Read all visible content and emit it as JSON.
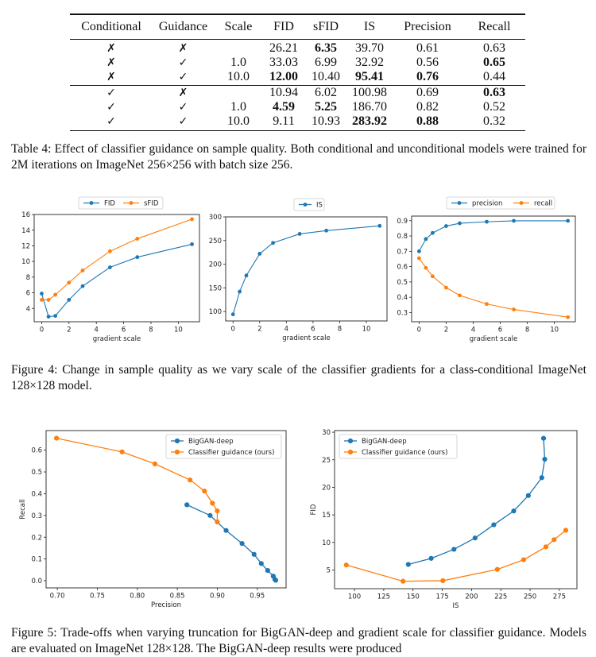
{
  "table": {
    "headers": [
      "Conditional",
      "Guidance",
      "Scale",
      "FID",
      "sFID",
      "IS",
      "Precision",
      "Recall"
    ],
    "rows": [
      {
        "cells": [
          "✗",
          "✗",
          "",
          "26.21",
          "6.35",
          "39.70",
          "0.61",
          "0.63"
        ],
        "bold": [
          false,
          false,
          false,
          false,
          true,
          false,
          false,
          false
        ]
      },
      {
        "cells": [
          "✗",
          "✓",
          "1.0",
          "33.03",
          "6.99",
          "32.92",
          "0.56",
          "0.65"
        ],
        "bold": [
          false,
          false,
          false,
          false,
          false,
          false,
          false,
          true
        ]
      },
      {
        "cells": [
          "✗",
          "✓",
          "10.0",
          "12.00",
          "10.40",
          "95.41",
          "0.76",
          "0.44"
        ],
        "bold": [
          false,
          false,
          false,
          true,
          false,
          true,
          true,
          false
        ]
      },
      {
        "cells": [
          "✓",
          "✗",
          "",
          "10.94",
          "6.02",
          "100.98",
          "0.69",
          "0.63"
        ],
        "bold": [
          false,
          false,
          false,
          false,
          false,
          false,
          false,
          true
        ]
      },
      {
        "cells": [
          "✓",
          "✓",
          "1.0",
          "4.59",
          "5.25",
          "186.70",
          "0.82",
          "0.52"
        ],
        "bold": [
          false,
          false,
          false,
          true,
          true,
          false,
          false,
          false
        ]
      },
      {
        "cells": [
          "✓",
          "✓",
          "10.0",
          "9.11",
          "10.93",
          "283.92",
          "0.88",
          "0.32"
        ],
        "bold": [
          false,
          false,
          false,
          false,
          false,
          true,
          true,
          false
        ]
      }
    ]
  },
  "captions": {
    "table4": "Table 4: Effect of classifier guidance on sample quality. Both conditional and unconditional models were trained for 2M iterations on ImageNet 256×256 with batch size 256.",
    "figure4": "Figure 4: Change in sample quality as we vary scale of the classifier gradients for a class-conditional ImageNet 128×128 model.",
    "figure5": "Figure 5:  Trade-offs when varying truncation for BigGAN-deep and gradient scale for classifier guidance. Models are evaluated on ImageNet 128×128. The BigGAN-deep results were produced"
  },
  "colors": {
    "blue": "#1f77b4",
    "orange": "#ff7f0e"
  },
  "chart_data": [
    {
      "type": "line",
      "id": "fig4-fid",
      "title": "",
      "xlabel": "gradient scale",
      "ylabel": "",
      "xlim": [
        -0.55,
        11.55
      ],
      "ylim": [
        2.3,
        16
      ],
      "xticks": [
        0,
        2,
        4,
        6,
        8,
        10
      ],
      "yticks": [
        4,
        6,
        8,
        10,
        12,
        14,
        16
      ],
      "legend": "top-center",
      "x": [
        0,
        0.5,
        1,
        2,
        3,
        5,
        7,
        11
      ],
      "series": [
        {
          "name": "FID",
          "color": "#1f77b4",
          "values": [
            5.9,
            2.95,
            3.05,
            5.1,
            6.85,
            9.25,
            10.55,
            12.2
          ]
        },
        {
          "name": "sFID",
          "color": "#ff7f0e",
          "values": [
            5.1,
            5.1,
            5.75,
            7.3,
            8.85,
            11.3,
            12.9,
            15.4
          ]
        }
      ]
    },
    {
      "type": "line",
      "id": "fig4-is",
      "title": "",
      "xlabel": "gradient scale",
      "ylabel": "",
      "xlim": [
        -0.55,
        11.55
      ],
      "ylim": [
        80,
        300
      ],
      "xticks": [
        0,
        2,
        4,
        6,
        8,
        10
      ],
      "yticks": [
        100,
        150,
        200,
        250,
        300
      ],
      "legend": "top-center",
      "x": [
        0,
        0.5,
        1,
        2,
        3,
        5,
        7,
        11
      ],
      "series": [
        {
          "name": "IS",
          "color": "#1f77b4",
          "values": [
            94,
            142,
            176,
            222,
            245,
            264,
            271,
            281
          ]
        }
      ]
    },
    {
      "type": "line",
      "id": "fig4-pr",
      "title": "",
      "xlabel": "gradient scale",
      "ylabel": "",
      "xlim": [
        -0.55,
        11.55
      ],
      "ylim": [
        0.24,
        0.93
      ],
      "xticks": [
        0,
        2,
        4,
        6,
        8,
        10
      ],
      "yticks": [
        0.3,
        0.4,
        0.5,
        0.6,
        0.7,
        0.8,
        0.9
      ],
      "legend": "top-center",
      "x": [
        0,
        0.5,
        1,
        2,
        3,
        5,
        7,
        11
      ],
      "series": [
        {
          "name": "precision",
          "color": "#1f77b4",
          "values": [
            0.7,
            0.78,
            0.82,
            0.865,
            0.883,
            0.893,
            0.899,
            0.899
          ]
        },
        {
          "name": "recall",
          "color": "#ff7f0e",
          "values": [
            0.655,
            0.592,
            0.537,
            0.463,
            0.412,
            0.356,
            0.32,
            0.27
          ]
        }
      ]
    },
    {
      "type": "line",
      "id": "fig5-pr",
      "title": "",
      "xlabel": "Precision",
      "ylabel": "Recall",
      "xlim": [
        0.686,
        0.986
      ],
      "ylim": [
        -0.033,
        0.69
      ],
      "xticks": [
        0.7,
        0.75,
        0.8,
        0.85,
        0.9,
        0.95
      ],
      "yticks": [
        0.0,
        0.1,
        0.2,
        0.3,
        0.4,
        0.5,
        0.6
      ],
      "legend": "top-right",
      "series": [
        {
          "name": "BigGAN-deep",
          "color": "#1f77b4",
          "points": [
            [
              0.862,
              0.349
            ],
            [
              0.891,
              0.3
            ],
            [
              0.911,
              0.231
            ],
            [
              0.931,
              0.171
            ],
            [
              0.946,
              0.121
            ],
            [
              0.955,
              0.079
            ],
            [
              0.963,
              0.047
            ],
            [
              0.97,
              0.021
            ],
            [
              0.972,
              0.006
            ],
            [
              0.973,
              0.002
            ]
          ]
        },
        {
          "name": "Classifier guidance (ours)",
          "color": "#ff7f0e",
          "points": [
            [
              0.699,
              0.655
            ],
            [
              0.781,
              0.592
            ],
            [
              0.822,
              0.537
            ],
            [
              0.866,
              0.463
            ],
            [
              0.884,
              0.412
            ],
            [
              0.894,
              0.356
            ],
            [
              0.9,
              0.321
            ],
            [
              0.9,
              0.27
            ]
          ]
        }
      ]
    },
    {
      "type": "line",
      "id": "fig5-is-fid",
      "title": "",
      "xlabel": "IS",
      "ylabel": "FID",
      "xlim": [
        83,
        290
      ],
      "ylim": [
        1.6,
        30.3
      ],
      "xticks": [
        100,
        125,
        150,
        175,
        200,
        225,
        250,
        275
      ],
      "yticks": [
        5,
        10,
        15,
        20,
        25,
        30
      ],
      "legend": "top-left",
      "series": [
        {
          "name": "BigGAN-deep",
          "color": "#1f77b4",
          "points": [
            [
              146,
              6.0
            ],
            [
              165.5,
              7.1
            ],
            [
              185,
              8.75
            ],
            [
              203,
              10.8
            ],
            [
              219,
              13.2
            ],
            [
              236,
              15.7
            ],
            [
              248.5,
              18.5
            ],
            [
              260,
              21.75
            ],
            [
              262.5,
              25.1
            ],
            [
              261.5,
              28.9
            ]
          ]
        },
        {
          "name": "Classifier guidance (ours)",
          "color": "#ff7f0e",
          "points": [
            [
              93,
              5.9
            ],
            [
              141.5,
              2.95
            ],
            [
              175.5,
              3.05
            ],
            [
              222,
              5.1
            ],
            [
              244.5,
              6.85
            ],
            [
              263.5,
              9.2
            ],
            [
              270.5,
              10.5
            ],
            [
              280.5,
              12.2
            ]
          ]
        }
      ]
    }
  ]
}
